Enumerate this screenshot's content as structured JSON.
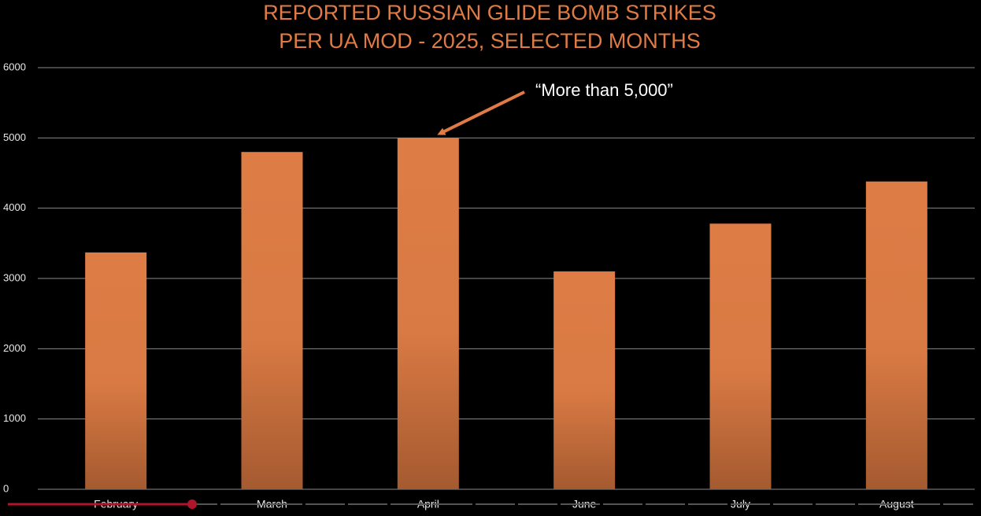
{
  "chart_data": {
    "type": "bar",
    "title": [
      "REPORTED RUSSIAN GLIDE BOMB STRIKES",
      "PER UA MOD - 2025, SELECTED MONTHS"
    ],
    "categories": [
      "February",
      "March",
      "April",
      "June",
      "July",
      "August"
    ],
    "values": [
      3370,
      4800,
      5000,
      3100,
      3780,
      4380
    ],
    "color": "#de7c45",
    "ylim": [
      0,
      6000
    ],
    "yticks": [
      0,
      1000,
      2000,
      3000,
      4000,
      5000,
      6000
    ],
    "grid": true,
    "annotation": "“More than 5,000”"
  }
}
